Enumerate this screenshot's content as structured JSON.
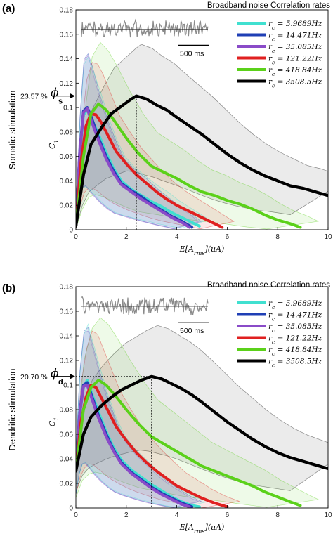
{
  "chart_data": [
    {
      "type": "line",
      "panel_label": "(a)",
      "side_label": "Somatic stimulation",
      "heading": "Broadband noise Correlation rates",
      "xlabel": "E[A_rms](uA)",
      "ylabel": "C̃_1",
      "xlim": [
        0,
        10
      ],
      "ylim": [
        0,
        0.18
      ],
      "xticks": [
        "0",
        "2",
        "4",
        "6",
        "8",
        "10"
      ],
      "yticks": [
        "0",
        "0.02",
        "0.04",
        "0.06",
        "0.08",
        "0.1",
        "0.12",
        "0.14",
        "0.16",
        "0.18"
      ],
      "legend_position": "top-right",
      "inset_scale_label": "500 ms",
      "marker": {
        "x": 2.4,
        "y": 0.1095,
        "percent_label": "23.57 %",
        "symbol": "ϕ",
        "subscript": "s"
      },
      "series": [
        {
          "name": "r_c = 5.9689Hz",
          "color": "#40e0d0",
          "x": [
            0,
            0.15,
            0.3,
            0.45,
            0.6,
            0.9,
            1.2,
            1.5,
            1.8,
            2.2,
            2.6,
            3.0,
            3.4,
            3.8,
            4.2,
            4.6,
            4.9
          ],
          "y": [
            0.003,
            0.06,
            0.094,
            0.098,
            0.092,
            0.078,
            0.063,
            0.05,
            0.04,
            0.033,
            0.028,
            0.023,
            0.019,
            0.014,
            0.01,
            0.006,
            0.003
          ]
        },
        {
          "name": "r_c = 14.471Hz",
          "color": "#1f3fb5",
          "x": [
            0,
            0.15,
            0.3,
            0.45,
            0.6,
            0.9,
            1.2,
            1.5,
            1.8,
            2.2,
            2.6,
            3.0,
            3.4,
            3.8,
            4.2,
            4.6
          ],
          "y": [
            0.003,
            0.063,
            0.097,
            0.1,
            0.093,
            0.075,
            0.06,
            0.048,
            0.038,
            0.032,
            0.027,
            0.021,
            0.016,
            0.011,
            0.007,
            0.002
          ]
        },
        {
          "name": "r_c = 35.085Hz",
          "color": "#8a4bc8",
          "x": [
            0,
            0.15,
            0.3,
            0.45,
            0.6,
            0.9,
            1.2,
            1.5,
            1.8,
            2.2,
            2.6,
            3.0,
            3.4,
            3.8,
            4.2,
            4.5
          ],
          "y": [
            0.003,
            0.062,
            0.096,
            0.099,
            0.09,
            0.073,
            0.058,
            0.046,
            0.037,
            0.031,
            0.025,
            0.02,
            0.015,
            0.01,
            0.006,
            0.002
          ]
        },
        {
          "name": "r_c = 121.22Hz",
          "color": "#e02020",
          "x": [
            0,
            0.2,
            0.4,
            0.6,
            0.8,
            1.0,
            1.3,
            1.6,
            2.0,
            2.4,
            2.8,
            3.2,
            3.6,
            4.0,
            4.5,
            5.0,
            5.4,
            5.8
          ],
          "y": [
            0.003,
            0.055,
            0.085,
            0.095,
            0.094,
            0.088,
            0.076,
            0.064,
            0.054,
            0.045,
            0.038,
            0.031,
            0.025,
            0.02,
            0.015,
            0.01,
            0.006,
            0.002
          ]
        },
        {
          "name": "r_c = 418.84Hz",
          "color": "#5bd11a",
          "x": [
            0,
            0.3,
            0.6,
            0.9,
            1.2,
            1.5,
            2.0,
            2.5,
            3.0,
            3.5,
            4.0,
            4.5,
            5.0,
            5.5,
            6.0,
            6.5,
            7.0,
            7.5,
            8.0,
            8.5,
            8.9
          ],
          "y": [
            0.003,
            0.06,
            0.095,
            0.103,
            0.098,
            0.09,
            0.075,
            0.062,
            0.052,
            0.047,
            0.042,
            0.036,
            0.031,
            0.028,
            0.024,
            0.021,
            0.017,
            0.012,
            0.008,
            0.005,
            0.002
          ]
        },
        {
          "name": "r_c = 3508.5Hz",
          "color": "#000000",
          "x": [
            0,
            0.3,
            0.6,
            1.0,
            1.4,
            1.8,
            2.2,
            2.4,
            2.8,
            3.2,
            3.6,
            4.0,
            4.5,
            5.0,
            5.5,
            6.0,
            6.5,
            7.0,
            7.5,
            8.0,
            8.5,
            9.0,
            9.5,
            10.0
          ],
          "y": [
            0.003,
            0.045,
            0.07,
            0.083,
            0.095,
            0.101,
            0.107,
            0.1095,
            0.107,
            0.102,
            0.098,
            0.092,
            0.085,
            0.078,
            0.07,
            0.062,
            0.055,
            0.049,
            0.044,
            0.04,
            0.036,
            0.034,
            0.031,
            0.028
          ]
        }
      ]
    },
    {
      "type": "line",
      "panel_label": "(b)",
      "side_label": "Dendritic stimulation",
      "heading": "Broadband noise Correlation rates",
      "xlabel": "E[A_rms](uA)",
      "ylabel": "C̃_1",
      "xlim": [
        0,
        10
      ],
      "ylim": [
        0,
        0.18
      ],
      "xticks": [
        "0",
        "2",
        "4",
        "6",
        "8",
        "10"
      ],
      "yticks": [
        "0",
        "0.02",
        "0.04",
        "0.06",
        "0.08",
        "0.1",
        "0.12",
        "0.14",
        "0.16",
        "0.18"
      ],
      "legend_position": "top-right",
      "inset_scale_label": "500 ms",
      "marker": {
        "x": 3.0,
        "y": 0.107,
        "percent_label": "20.70 %",
        "symbol": "ϕ",
        "subscript": "d"
      },
      "series": [
        {
          "name": "r_c = 5.9689Hz",
          "color": "#40e0d0",
          "x": [
            0,
            0.15,
            0.3,
            0.45,
            0.6,
            0.9,
            1.2,
            1.5,
            1.8,
            2.2,
            2.6,
            3.0,
            3.4,
            3.8,
            4.2,
            4.6,
            4.9
          ],
          "y": [
            0.03,
            0.075,
            0.098,
            0.104,
            0.095,
            0.078,
            0.062,
            0.049,
            0.039,
            0.031,
            0.025,
            0.019,
            0.014,
            0.009,
            0.005,
            0.002,
            0.001
          ]
        },
        {
          "name": "r_c = 14.471Hz",
          "color": "#1f3fb5",
          "x": [
            0,
            0.15,
            0.3,
            0.45,
            0.6,
            0.9,
            1.2,
            1.5,
            1.8,
            2.2,
            2.6,
            3.0,
            3.4,
            3.8,
            4.2,
            4.6
          ],
          "y": [
            0.03,
            0.077,
            0.1,
            0.102,
            0.093,
            0.075,
            0.06,
            0.047,
            0.037,
            0.029,
            0.023,
            0.017,
            0.012,
            0.008,
            0.004,
            0.001
          ]
        },
        {
          "name": "r_c = 35.085Hz",
          "color": "#8a4bc8",
          "x": [
            0,
            0.15,
            0.3,
            0.45,
            0.6,
            0.9,
            1.2,
            1.5,
            1.8,
            2.2,
            2.6,
            3.0,
            3.4,
            3.8,
            4.2,
            4.5
          ],
          "y": [
            0.03,
            0.076,
            0.099,
            0.1,
            0.091,
            0.073,
            0.058,
            0.046,
            0.036,
            0.028,
            0.022,
            0.016,
            0.011,
            0.007,
            0.003,
            0.001
          ]
        },
        {
          "name": "r_c = 121.22Hz",
          "color": "#e02020",
          "x": [
            0,
            0.2,
            0.4,
            0.6,
            0.8,
            1.0,
            1.3,
            1.6,
            2.0,
            2.4,
            2.8,
            3.2,
            3.6,
            4.0,
            4.5,
            5.0,
            5.5,
            6.0
          ],
          "y": [
            0.03,
            0.07,
            0.09,
            0.1,
            0.098,
            0.09,
            0.078,
            0.066,
            0.055,
            0.045,
            0.037,
            0.03,
            0.024,
            0.018,
            0.013,
            0.008,
            0.004,
            0.001
          ]
        },
        {
          "name": "r_c = 418.84Hz",
          "color": "#5bd11a",
          "x": [
            0,
            0.3,
            0.6,
            0.9,
            1.2,
            1.5,
            2.0,
            2.5,
            3.0,
            3.5,
            4.0,
            4.5,
            5.0,
            5.5,
            6.0,
            6.5,
            7.0,
            7.5,
            8.0,
            8.5,
            8.9
          ],
          "y": [
            0.03,
            0.08,
            0.098,
            0.104,
            0.1,
            0.093,
            0.08,
            0.068,
            0.058,
            0.052,
            0.046,
            0.04,
            0.034,
            0.03,
            0.026,
            0.022,
            0.018,
            0.013,
            0.009,
            0.005,
            0.002
          ]
        },
        {
          "name": "r_c = 3508.5Hz",
          "color": "#000000",
          "x": [
            0,
            0.3,
            0.6,
            1.0,
            1.4,
            1.8,
            2.2,
            2.6,
            3.0,
            3.4,
            3.8,
            4.2,
            4.6,
            5.0,
            5.5,
            6.0,
            6.5,
            7.0,
            7.5,
            8.0,
            8.5,
            9.0,
            9.5,
            10.0
          ],
          "y": [
            0.03,
            0.06,
            0.074,
            0.083,
            0.09,
            0.096,
            0.1,
            0.104,
            0.107,
            0.105,
            0.101,
            0.097,
            0.092,
            0.086,
            0.078,
            0.07,
            0.063,
            0.056,
            0.05,
            0.045,
            0.041,
            0.038,
            0.035,
            0.032
          ]
        }
      ]
    }
  ]
}
